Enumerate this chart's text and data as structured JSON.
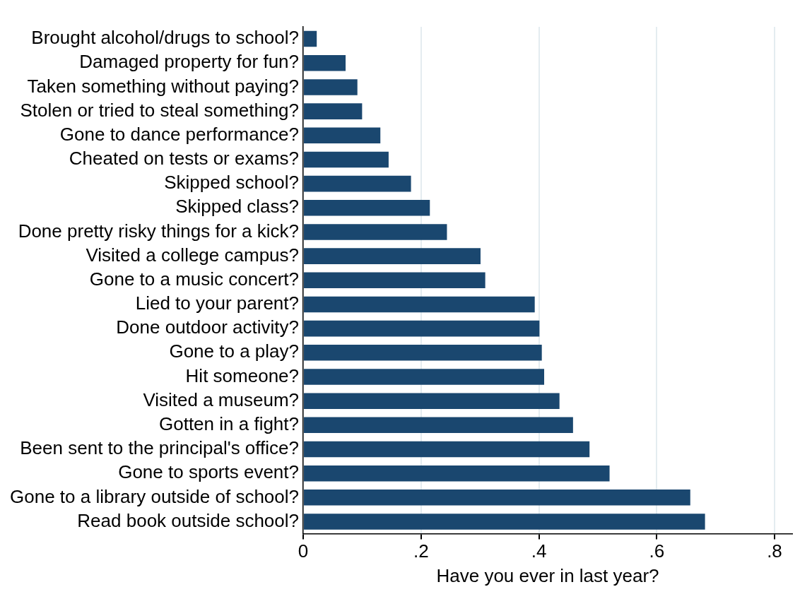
{
  "chart_data": {
    "type": "bar",
    "orientation": "horizontal",
    "xlabel": "Have you ever in last year?",
    "categories": [
      "Brought alcohol/drugs to school?",
      "Damaged property for fun?",
      "Taken something without paying?",
      "Stolen or tried to steal something?",
      "Gone to dance performance?",
      "Cheated on tests or exams?",
      "Skipped school?",
      "Skipped class?",
      "Done pretty risky things for a kick?",
      "Visited a college campus?",
      "Gone to a music concert?",
      "Lied to your parent?",
      "Done outdoor activity?",
      "Gone to a play?",
      "Hit someone?",
      "Visited a museum?",
      "Gotten in a fight?",
      "Been sent to the principal's office?",
      "Gone to sports event?",
      "Gone to a library outside of school?",
      "Read book outside school?"
    ],
    "values": [
      0.023,
      0.072,
      0.092,
      0.1,
      0.131,
      0.145,
      0.183,
      0.215,
      0.244,
      0.301,
      0.309,
      0.393,
      0.401,
      0.405,
      0.409,
      0.435,
      0.458,
      0.486,
      0.52,
      0.657,
      0.682
    ],
    "color": "#1a476f",
    "xlim": [
      0,
      0.83
    ],
    "xticks": [
      0,
      {
        "value": 0.2,
        "label": ".2"
      },
      {
        "value": 0.4,
        "label": ".4"
      },
      {
        "value": 0.6,
        "label": ".6"
      },
      {
        "value": 0.8,
        "label": ".8"
      }
    ],
    "grid": "x",
    "legend": false
  }
}
